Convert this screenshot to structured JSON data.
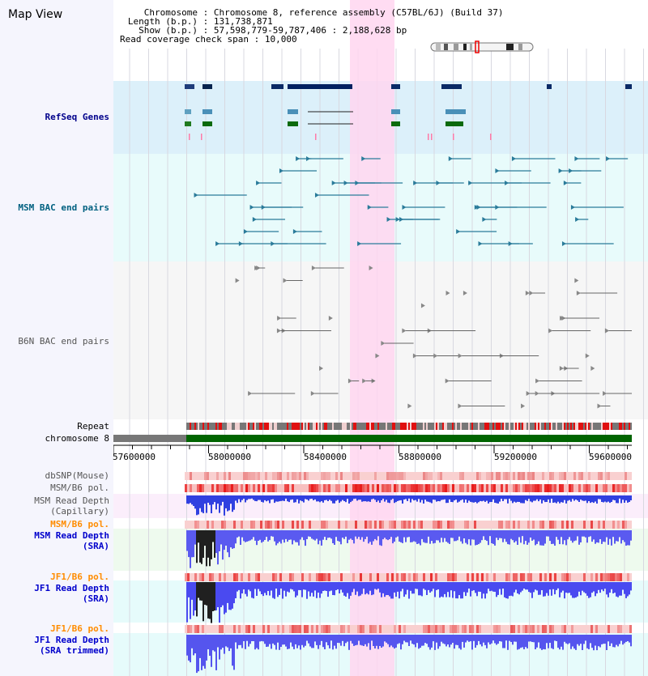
{
  "title": "Map View",
  "info": {
    "chromosome_label": "Chromosome",
    "chromosome_value": "Chromosome 8, reference assembly (C57BL/6J) (Build 37)",
    "length_label": "Length (b.p.)",
    "length_value": "131,738,871",
    "show_label": "Show (b.p.)",
    "show_value": "57,598,779-59,787,406 : 2,188,628 bp",
    "coverage_label": "Read coverage check span",
    "coverage_value": "10,000"
  },
  "tracks": {
    "refseq": "RefSeq Genes",
    "msm_bac": "MSM BAC end pairs",
    "b6n_bac": "B6N BAC end pairs",
    "repeat": "Repeat",
    "chromosome": "chromosome 8",
    "dbsnp": "dbSNP(Mouse)",
    "msm_b6_pol_1": "MSM/B6 pol.",
    "msm_read_depth_cap_1": "MSM Read Depth",
    "msm_read_depth_cap_2": "(Capillary)",
    "msm_b6_pol_2": "MSM/B6 pol.",
    "msm_read_depth_sra_1": "MSM Read Depth",
    "msm_read_depth_sra_2": "(SRA)",
    "jf1_b6_pol_1": "JF1/B6 pol.",
    "jf1_read_depth_sra_1": "JF1 Read Depth",
    "jf1_read_depth_sra_2": "(SRA)",
    "jf1_b6_pol_2": "JF1/B6 pol.",
    "jf1_read_depth_trim_1": "JF1 Read Depth",
    "jf1_read_depth_trim_2": "(SRA trimmed)"
  },
  "axis": {
    "ticks": [
      "57600000",
      "58000000",
      "58400000",
      "58800000",
      "59200000",
      "59600000"
    ]
  },
  "colors": {
    "refseq_label": "#00008b",
    "msm_label": "#006080",
    "gray_label": "#555555",
    "orange_label": "#ff8c00",
    "blue_label": "#0000cc",
    "highlight": "#ffd6f0",
    "chrom_green": "#006400"
  }
}
